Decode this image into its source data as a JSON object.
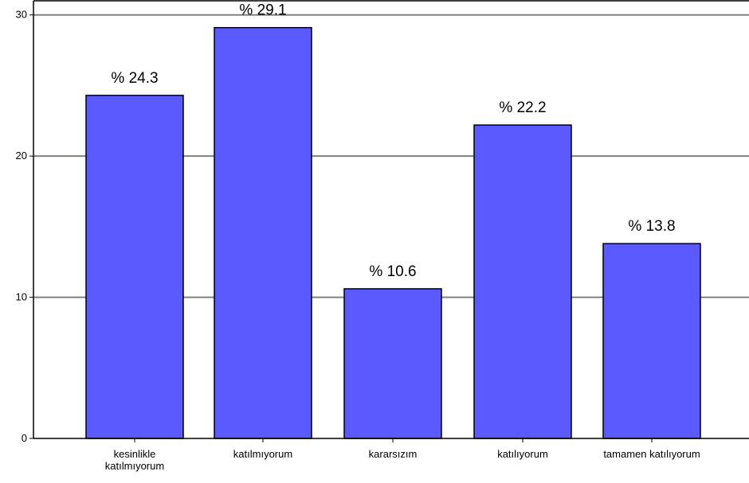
{
  "chart_data": {
    "type": "bar",
    "title": "",
    "xlabel": "",
    "ylabel": "",
    "ylim": [
      0,
      31
    ],
    "yticks": [
      0,
      10,
      20,
      30
    ],
    "grid": true,
    "legend": "none",
    "categories": [
      [
        "kesinlikle",
        "katılmıyorum"
      ],
      [
        "katılmıyorum"
      ],
      [
        "kararsızım"
      ],
      [
        "katılıyorum"
      ],
      [
        "tamamen katılıyorum"
      ]
    ],
    "values": [
      24.3,
      29.1,
      10.6,
      22.2,
      13.8
    ],
    "data_labels": [
      "% 24.3",
      "% 29.1",
      "% 10.6",
      "% 22.2",
      "% 13.8"
    ],
    "bar_color": "#5a5aff",
    "bar_edge_color": "#000000"
  }
}
